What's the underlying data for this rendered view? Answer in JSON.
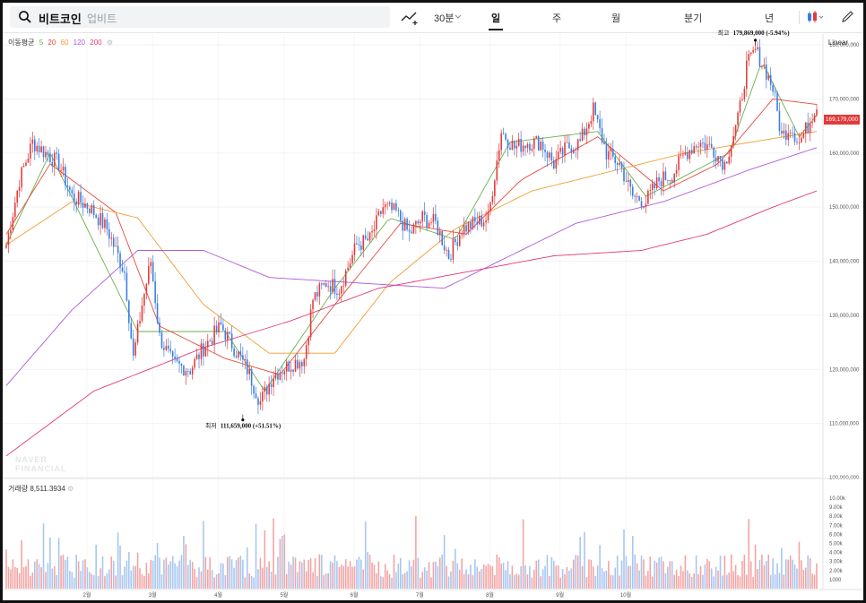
{
  "toolbar": {
    "coin_name": "비트코인",
    "exchange": "업비트",
    "interval_label": "30분",
    "tabs": [
      "일",
      "주",
      "월",
      "분기",
      "년"
    ],
    "active_tab": "일"
  },
  "ma_legend": {
    "title": "이동평균",
    "periods": [
      {
        "label": "5",
        "color": "#6ab04c"
      },
      {
        "label": "20",
        "color": "#e84a3b"
      },
      {
        "label": "60",
        "color": "#f39c34"
      },
      {
        "label": "120",
        "color": "#b05ad8"
      },
      {
        "label": "200",
        "color": "#e23b78"
      }
    ]
  },
  "scale_label": "Linear",
  "price_tag": "169,179,000",
  "volume_legend": {
    "title": "거래량",
    "value": "8,511.3934"
  },
  "watermark": [
    "NAVER",
    "FINANCIAL"
  ],
  "annotations": {
    "high": {
      "label": "최고",
      "value": "179,869,000 (-5.94%)"
    },
    "low": {
      "label": "최저",
      "value": "111,659,000 (+51.51%)"
    }
  },
  "colors": {
    "up": "#e23b3b",
    "down": "#3b7de0",
    "vol_up": "#f4a3a3",
    "vol_down": "#a8c6f0"
  },
  "chart_data": {
    "type": "candlestick",
    "y_ticks": [
      "180,000,000",
      "170,000,000",
      "160,000,000",
      "150,000,000",
      "140,000,000",
      "130,000,000",
      "120,000,000",
      "110,000,000",
      "100,000,000"
    ],
    "ylim": [
      100000000,
      182000000
    ],
    "x_ticks": [
      "2월",
      "3월",
      "4월",
      "5월",
      "6월",
      "7월",
      "8월",
      "9월",
      "10월"
    ],
    "volume_ticks": [
      "10.00k",
      "9.00k",
      "8.00k",
      "7.00k",
      "6.00k",
      "5.00k",
      "4.00k",
      "3.00k",
      "2.00k",
      "1000"
    ],
    "volume_ylim": [
      0,
      10500
    ],
    "close_anchors": [
      [
        0,
        143000000
      ],
      [
        6,
        155000000
      ],
      [
        12,
        162000000
      ],
      [
        18,
        160000000
      ],
      [
        24,
        158000000
      ],
      [
        30,
        152000000
      ],
      [
        38,
        150000000
      ],
      [
        46,
        146000000
      ],
      [
        54,
        138000000
      ],
      [
        58,
        122000000
      ],
      [
        62,
        132000000
      ],
      [
        66,
        140000000
      ],
      [
        70,
        126000000
      ],
      [
        76,
        121000000
      ],
      [
        84,
        120000000
      ],
      [
        90,
        124000000
      ],
      [
        98,
        128000000
      ],
      [
        104,
        124000000
      ],
      [
        110,
        120000000
      ],
      [
        116,
        114000000
      ],
      [
        122,
        119000000
      ],
      [
        130,
        121000000
      ],
      [
        136,
        122000000
      ],
      [
        140,
        133000000
      ],
      [
        146,
        136000000
      ],
      [
        152,
        135000000
      ],
      [
        160,
        143000000
      ],
      [
        166,
        144000000
      ],
      [
        172,
        150000000
      ],
      [
        178,
        149000000
      ],
      [
        184,
        145000000
      ],
      [
        190,
        148000000
      ],
      [
        196,
        147000000
      ],
      [
        202,
        141000000
      ],
      [
        208,
        146000000
      ],
      [
        214,
        147000000
      ],
      [
        220,
        148000000
      ],
      [
        226,
        164000000
      ],
      [
        232,
        161000000
      ],
      [
        238,
        162000000
      ],
      [
        244,
        162000000
      ],
      [
        250,
        158000000
      ],
      [
        256,
        161000000
      ],
      [
        262,
        162000000
      ],
      [
        268,
        168000000
      ],
      [
        274,
        160000000
      ],
      [
        280,
        158000000
      ],
      [
        286,
        152000000
      ],
      [
        292,
        151000000
      ],
      [
        298,
        155000000
      ],
      [
        304,
        156000000
      ],
      [
        310,
        160000000
      ],
      [
        316,
        162000000
      ],
      [
        322,
        161000000
      ],
      [
        328,
        158000000
      ],
      [
        334,
        166000000
      ],
      [
        338,
        176000000
      ],
      [
        342,
        179000000
      ],
      [
        346,
        176000000
      ],
      [
        350,
        172000000
      ],
      [
        354,
        163000000
      ],
      [
        358,
        165000000
      ],
      [
        362,
        162000000
      ],
      [
        366,
        165000000
      ],
      [
        370,
        169179000
      ]
    ],
    "ma_series": [
      {
        "period": 5,
        "values": [
          [
            0,
            143000000
          ],
          [
            20,
            160000000
          ],
          [
            60,
            127000000
          ],
          [
            100,
            127000000
          ],
          [
            118,
            116000000
          ],
          [
            150,
            135000000
          ],
          [
            175,
            148000000
          ],
          [
            205,
            144000000
          ],
          [
            230,
            162000000
          ],
          [
            270,
            164000000
          ],
          [
            292,
            152000000
          ],
          [
            330,
            160000000
          ],
          [
            345,
            177000000
          ],
          [
            362,
            163000000
          ],
          [
            370,
            167000000
          ]
        ]
      },
      {
        "period": 20,
        "values": [
          [
            0,
            145000000
          ],
          [
            20,
            158000000
          ],
          [
            50,
            149000000
          ],
          [
            70,
            128000000
          ],
          [
            100,
            122000000
          ],
          [
            125,
            119000000
          ],
          [
            150,
            132000000
          ],
          [
            180,
            147000000
          ],
          [
            210,
            145000000
          ],
          [
            235,
            155000000
          ],
          [
            270,
            163000000
          ],
          [
            300,
            153000000
          ],
          [
            325,
            158000000
          ],
          [
            350,
            170000000
          ],
          [
            370,
            169000000
          ]
        ]
      },
      {
        "period": 60,
        "values": [
          [
            0,
            143000000
          ],
          [
            30,
            151000000
          ],
          [
            60,
            148000000
          ],
          [
            90,
            132000000
          ],
          [
            120,
            123000000
          ],
          [
            150,
            123000000
          ],
          [
            175,
            136000000
          ],
          [
            205,
            146000000
          ],
          [
            240,
            153000000
          ],
          [
            270,
            156000000
          ],
          [
            310,
            160000000
          ],
          [
            340,
            162000000
          ],
          [
            370,
            164000000
          ]
        ]
      },
      {
        "period": 120,
        "values": [
          [
            0,
            117000000
          ],
          [
            30,
            131000000
          ],
          [
            60,
            142000000
          ],
          [
            90,
            142000000
          ],
          [
            120,
            137000000
          ],
          [
            160,
            136000000
          ],
          [
            200,
            135000000
          ],
          [
            225,
            140000000
          ],
          [
            260,
            147000000
          ],
          [
            300,
            151000000
          ],
          [
            340,
            157000000
          ],
          [
            370,
            161000000
          ]
        ]
      },
      {
        "period": 200,
        "values": [
          [
            0,
            104000000
          ],
          [
            40,
            116000000
          ],
          [
            90,
            124000000
          ],
          [
            130,
            129000000
          ],
          [
            170,
            135000000
          ],
          [
            210,
            138000000
          ],
          [
            250,
            141000000
          ],
          [
            290,
            142000000
          ],
          [
            320,
            145000000
          ],
          [
            350,
            150000000
          ],
          [
            370,
            153000000
          ]
        ]
      }
    ],
    "high": {
      "value": 179869000,
      "index": 342
    },
    "low": {
      "value": 111659000,
      "index": 108
    }
  }
}
